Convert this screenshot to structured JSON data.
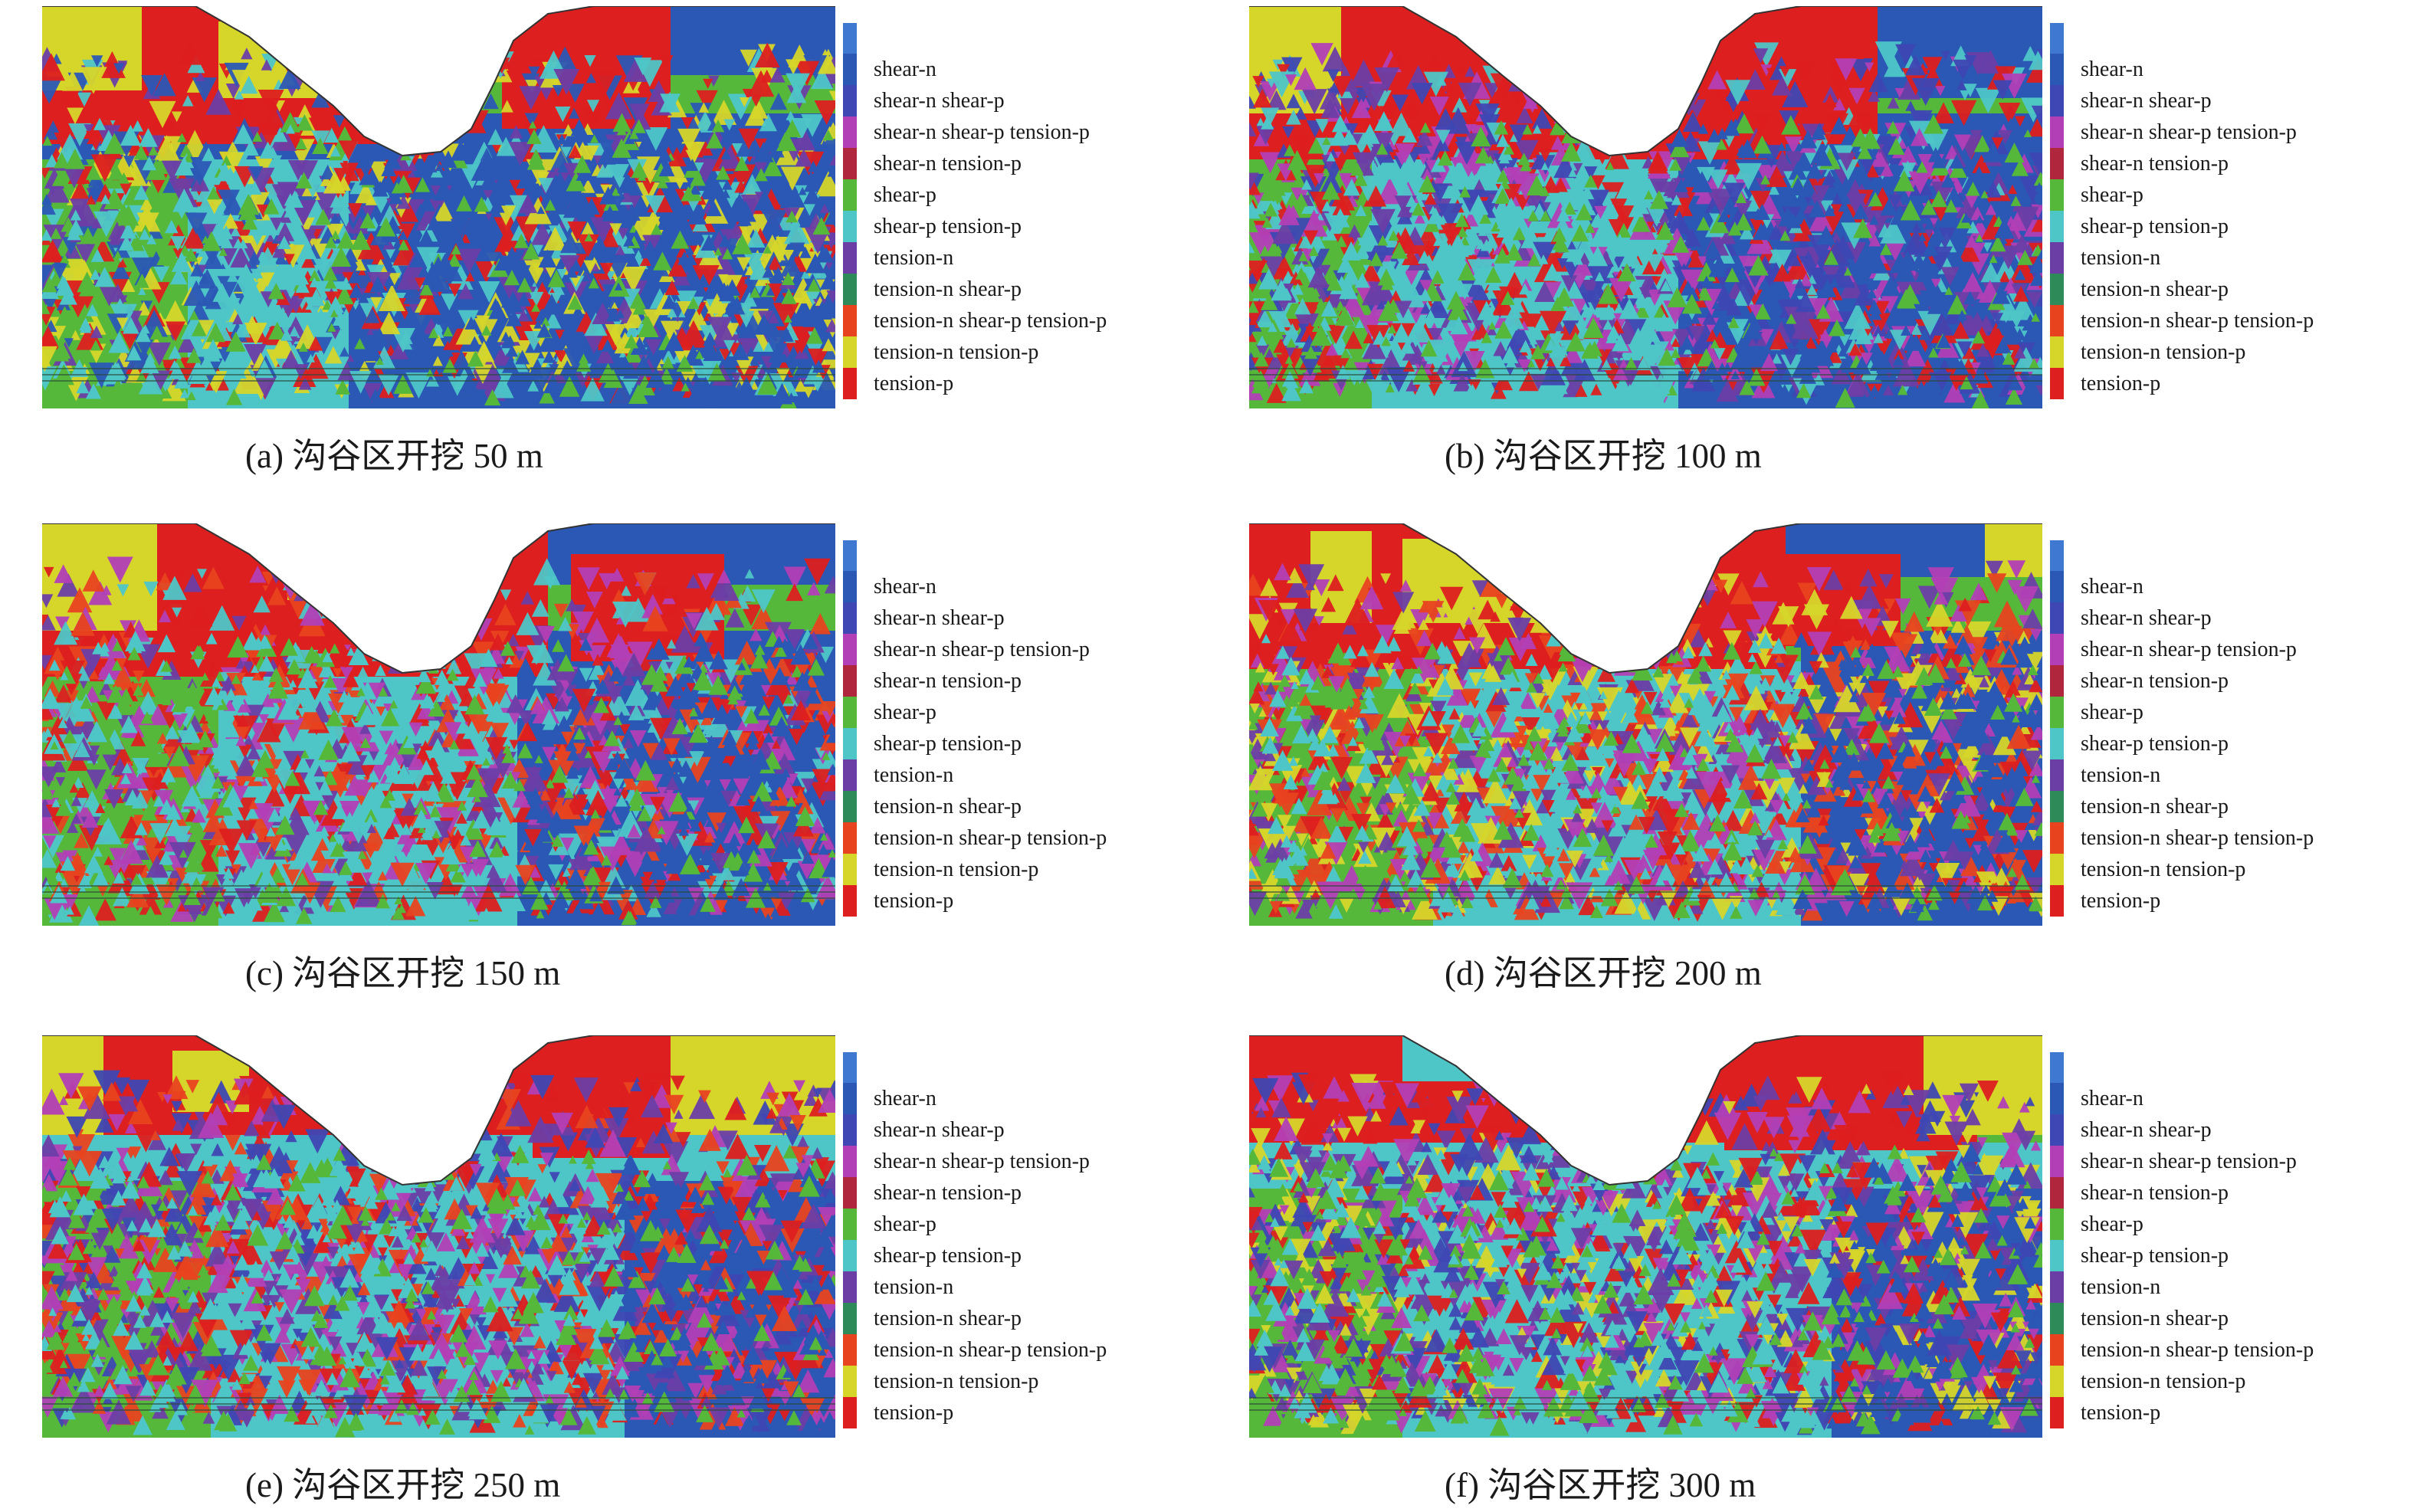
{
  "legend": {
    "items": [
      {
        "label": "shear-n",
        "color": "#2b57b5"
      },
      {
        "label": "shear-n shear-p",
        "color": "#3e47b3"
      },
      {
        "label": "shear-n shear-p tension-p",
        "color": "#b23fb6"
      },
      {
        "label": "shear-n tension-p",
        "color": "#b0263d"
      },
      {
        "label": "shear-p",
        "color": "#55b83a"
      },
      {
        "label": "shear-p tension-p",
        "color": "#4ec6c8"
      },
      {
        "label": "tension-n",
        "color": "#6b3ea6"
      },
      {
        "label": "tension-n shear-p",
        "color": "#2f8a5a"
      },
      {
        "label": "tension-n shear-p tension-p",
        "color": "#e8431f"
      },
      {
        "label": "tension-n tension-p",
        "color": "#d6d62a"
      },
      {
        "label": "tension-p",
        "color": "#dd1f1f"
      }
    ],
    "top_color": "#3f78d0"
  },
  "panels": [
    {
      "id": "a",
      "caption": "(a) 沟谷区开挖 50 m"
    },
    {
      "id": "b",
      "caption": "(b) 沟谷区开挖 100 m"
    },
    {
      "id": "c",
      "caption": "(c) 沟谷区开挖 150 m"
    },
    {
      "id": "d",
      "caption": "(d) 沟谷区开挖 200 m"
    },
    {
      "id": "e",
      "caption": "(e) 沟谷区开挖 250 m"
    },
    {
      "id": "f",
      "caption": "(f) 沟谷区开挖 300 m"
    }
  ]
}
